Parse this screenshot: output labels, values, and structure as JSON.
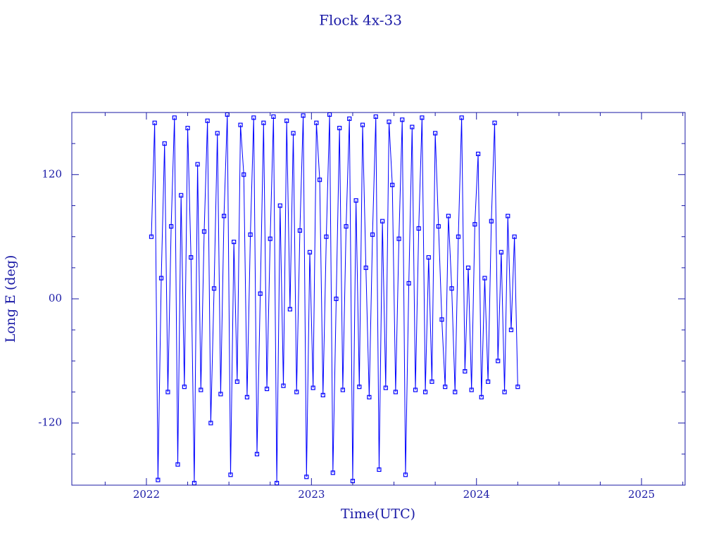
{
  "chart_data": {
    "type": "line",
    "title": "Flock 4x-33",
    "x_label": "Time(UTC)",
    "y_label": "Long E (deg)",
    "color": "#0000ff",
    "axis_color": "#1a1aa6",
    "markers": true,
    "xlim": [
      2021.548,
      2025.264
    ],
    "ylim": [
      -180,
      180
    ],
    "xticks": [
      2022,
      2023,
      2024,
      2025
    ],
    "xminorticks": [
      2021.75,
      2022.25,
      2022.5,
      2022.75,
      2023.25,
      2023.5,
      2023.75,
      2024.25,
      2024.5,
      2024.75,
      2025.25
    ],
    "yticks": [
      -120,
      {
        "value": 0,
        "label": "00"
      },
      120
    ],
    "yminorticks": [
      -150,
      -90,
      -60,
      -30,
      30,
      60,
      90,
      150
    ],
    "x": [
      2022.03,
      2022.05,
      2022.07,
      2022.09,
      2022.11,
      2022.13,
      2022.15,
      2022.17,
      2022.19,
      2022.21,
      2022.23,
      2022.25,
      2022.27,
      2022.29,
      2022.31,
      2022.33,
      2022.35,
      2022.37,
      2022.39,
      2022.41,
      2022.43,
      2022.45,
      2022.47,
      2022.49,
      2022.51,
      2022.53,
      2022.55,
      2022.57,
      2022.59,
      2022.61,
      2022.63,
      2022.65,
      2022.67,
      2022.69,
      2022.71,
      2022.73,
      2022.75,
      2022.77,
      2022.79,
      2022.81,
      2022.83,
      2022.85,
      2022.87,
      2022.89,
      2022.91,
      2022.93,
      2022.95,
      2022.97,
      2022.99,
      2023.01,
      2023.03,
      2023.05,
      2023.07,
      2023.09,
      2023.11,
      2023.13,
      2023.15,
      2023.17,
      2023.19,
      2023.21,
      2023.23,
      2023.25,
      2023.27,
      2023.29,
      2023.31,
      2023.33,
      2023.35,
      2023.37,
      2023.39,
      2023.41,
      2023.43,
      2023.45,
      2023.47,
      2023.49,
      2023.51,
      2023.53,
      2023.55,
      2023.57,
      2023.59,
      2023.61,
      2023.63,
      2023.65,
      2023.67,
      2023.69,
      2023.71,
      2023.73,
      2023.75,
      2023.77,
      2023.79,
      2023.81,
      2023.83,
      2023.85,
      2023.87,
      2023.89,
      2023.91,
      2023.93,
      2023.95,
      2023.97,
      2023.99,
      2024.01,
      2024.03,
      2024.05,
      2024.07,
      2024.09,
      2024.11,
      2024.13,
      2024.15,
      2024.17,
      2024.19,
      2024.21,
      2024.23,
      2024.25
    ],
    "values": [
      60,
      170,
      -175,
      20,
      150,
      -90,
      70,
      175,
      -160,
      100,
      -85,
      165,
      40,
      -178,
      130,
      -88,
      65,
      172,
      -120,
      10,
      160,
      -92,
      80,
      178,
      -170,
      55,
      -80,
      168,
      120,
      -95,
      62,
      175,
      -150,
      5,
      170,
      -87,
      58,
      176,
      -178,
      90,
      -84,
      172,
      -10,
      160,
      -90,
      66,
      177,
      -172,
      45,
      -86,
      170,
      115,
      -93,
      60,
      178,
      -168,
      0,
      165,
      -88,
      70,
      174,
      -176,
      95,
      -85,
      168,
      30,
      -95,
      62,
      176,
      -165,
      75,
      -86,
      171,
      110,
      -90,
      58,
      173,
      -170,
      15,
      166,
      -88,
      68,
      175,
      -90,
      40,
      -80,
      160,
      70,
      -20,
      -85,
      80,
      10,
      -90,
      60,
      175,
      -70,
      30,
      -88,
      72,
      140,
      -95,
      20,
      -80,
      75,
      170,
      -60,
      45,
      -90,
      80,
      -30,
      60,
      -85
    ]
  }
}
